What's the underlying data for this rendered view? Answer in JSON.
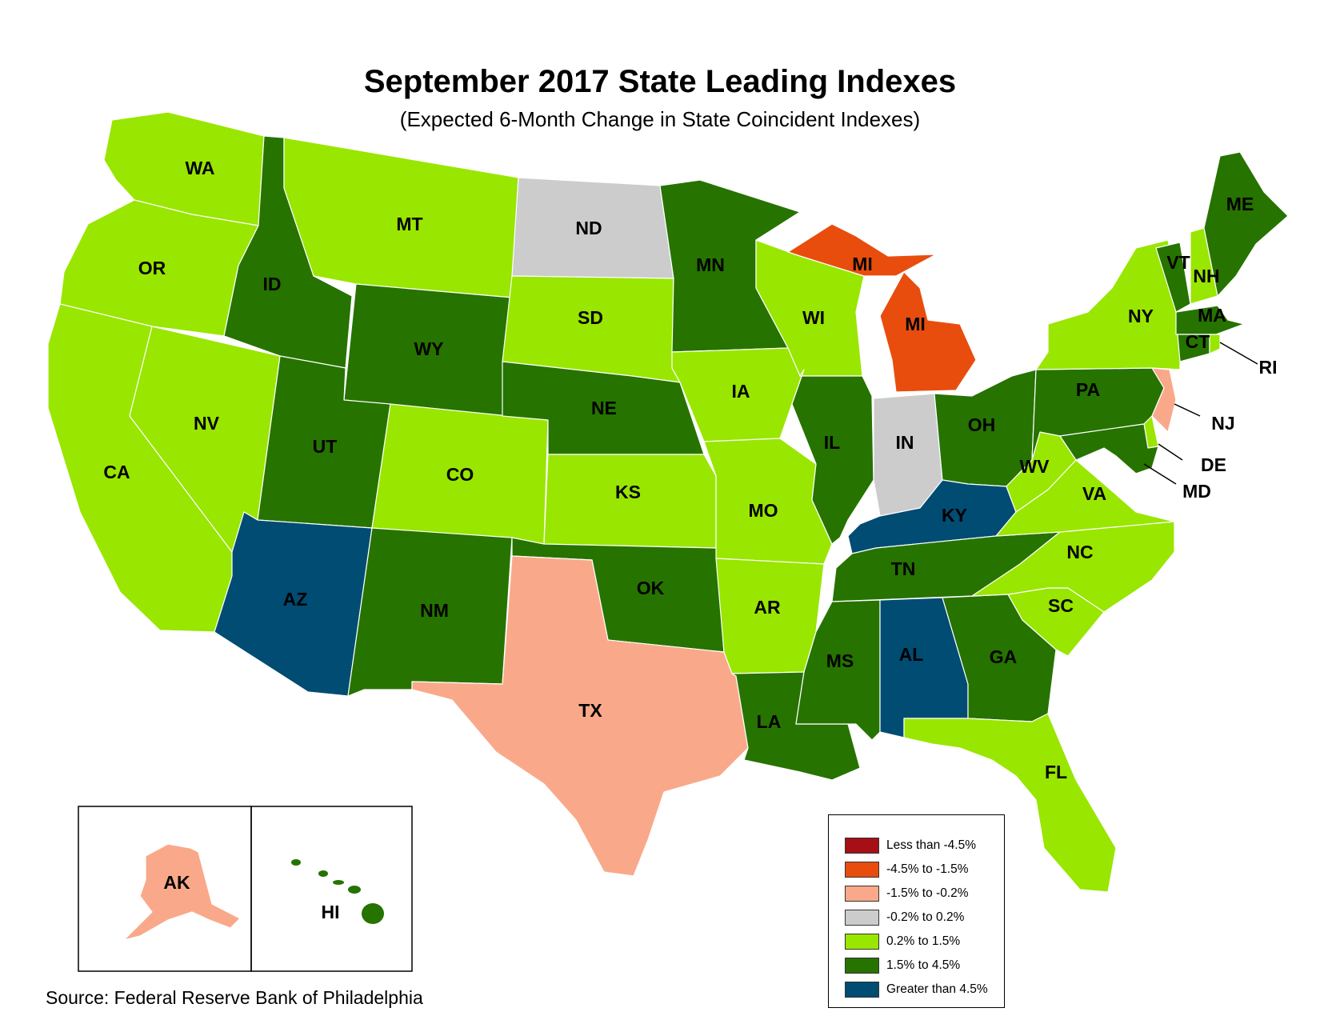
{
  "title": "September 2017 State Leading Indexes",
  "subtitle": "(Expected 6-Month Change in State Coincident Indexes)",
  "source": "Source: Federal Reserve Bank of Philadelphia",
  "legend": [
    {
      "label": "Less than -4.5%",
      "color": "#a50f15"
    },
    {
      "label": "-4.5% to -1.5%",
      "color": "#e84d0e"
    },
    {
      "label": "-1.5% to -0.2%",
      "color": "#f9a989"
    },
    {
      "label": "-0.2% to 0.2%",
      "color": "#cccccc"
    },
    {
      "label": "0.2% to 1.5%",
      "color": "#99e600"
    },
    {
      "label": "1.5% to 4.5%",
      "color": "#267300"
    },
    {
      "label": "Greater than 4.5%",
      "color": "#004c73"
    }
  ],
  "states": [
    {
      "abbr": "WA",
      "cat": 4
    },
    {
      "abbr": "OR",
      "cat": 4
    },
    {
      "abbr": "CA",
      "cat": 4
    },
    {
      "abbr": "NV",
      "cat": 4
    },
    {
      "abbr": "ID",
      "cat": 5
    },
    {
      "abbr": "MT",
      "cat": 4
    },
    {
      "abbr": "WY",
      "cat": 5
    },
    {
      "abbr": "UT",
      "cat": 5
    },
    {
      "abbr": "AZ",
      "cat": 6
    },
    {
      "abbr": "CO",
      "cat": 4
    },
    {
      "abbr": "NM",
      "cat": 5
    },
    {
      "abbr": "ND",
      "cat": 3
    },
    {
      "abbr": "SD",
      "cat": 4
    },
    {
      "abbr": "NE",
      "cat": 5
    },
    {
      "abbr": "KS",
      "cat": 4
    },
    {
      "abbr": "OK",
      "cat": 5
    },
    {
      "abbr": "TX",
      "cat": 2
    },
    {
      "abbr": "MN",
      "cat": 5
    },
    {
      "abbr": "IA",
      "cat": 4
    },
    {
      "abbr": "MO",
      "cat": 4
    },
    {
      "abbr": "AR",
      "cat": 4
    },
    {
      "abbr": "LA",
      "cat": 5
    },
    {
      "abbr": "WI",
      "cat": 4
    },
    {
      "abbr": "IL",
      "cat": 5
    },
    {
      "abbr": "MI",
      "cat": 1
    },
    {
      "abbr": "IN",
      "cat": 3
    },
    {
      "abbr": "OH",
      "cat": 5
    },
    {
      "abbr": "KY",
      "cat": 6
    },
    {
      "abbr": "TN",
      "cat": 5
    },
    {
      "abbr": "MS",
      "cat": 5
    },
    {
      "abbr": "AL",
      "cat": 6
    },
    {
      "abbr": "GA",
      "cat": 5
    },
    {
      "abbr": "FL",
      "cat": 4
    },
    {
      "abbr": "SC",
      "cat": 4
    },
    {
      "abbr": "NC",
      "cat": 4
    },
    {
      "abbr": "VA",
      "cat": 4
    },
    {
      "abbr": "WV",
      "cat": 4
    },
    {
      "abbr": "PA",
      "cat": 5
    },
    {
      "abbr": "NY",
      "cat": 4
    },
    {
      "abbr": "ME",
      "cat": 5
    },
    {
      "abbr": "VT",
      "cat": 5
    },
    {
      "abbr": "NH",
      "cat": 4
    },
    {
      "abbr": "MA",
      "cat": 5
    },
    {
      "abbr": "CT",
      "cat": 5
    },
    {
      "abbr": "RI",
      "cat": 4
    },
    {
      "abbr": "NJ",
      "cat": 2
    },
    {
      "abbr": "DE",
      "cat": 4
    },
    {
      "abbr": "MD",
      "cat": 5
    },
    {
      "abbr": "AK",
      "cat": 2
    },
    {
      "abbr": "HI",
      "cat": 5
    }
  ]
}
